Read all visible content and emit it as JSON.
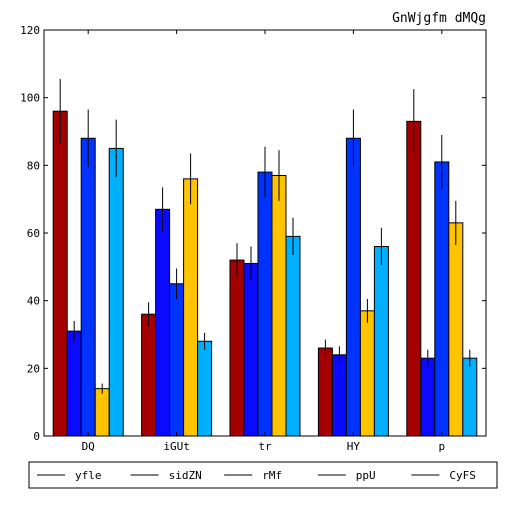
{
  "chart_data": {
    "type": "bar",
    "title": "GnWjgfm dMQg",
    "xlabel": "",
    "ylabel": "",
    "categories": [
      "DQ",
      "iGUt",
      "tr",
      "HY",
      "p"
    ],
    "ylim": [
      0,
      120
    ],
    "yticks": [
      0,
      20,
      40,
      60,
      80,
      100,
      120
    ],
    "grid": false,
    "legend_position": "bottom",
    "series": [
      {
        "name": "yfle",
        "color": "#a50000",
        "values": [
          96,
          36,
          52,
          26,
          93
        ],
        "errors": [
          9.5,
          3.5,
          5,
          2.5,
          9.5
        ]
      },
      {
        "name": "sidZN",
        "color": "#0a0aff",
        "values": [
          31,
          67,
          51,
          24,
          23
        ],
        "errors": [
          3,
          6.5,
          5,
          2.5,
          2.5
        ]
      },
      {
        "name": "rMf",
        "color": "#0033ff",
        "values": [
          88,
          45,
          78,
          88,
          81
        ],
        "errors": [
          8.5,
          4.5,
          7.5,
          8.5,
          8
        ]
      },
      {
        "name": "ppU",
        "color": "#ffc400",
        "values": [
          14,
          76,
          77,
          37,
          63
        ],
        "errors": [
          1.5,
          7.5,
          7.5,
          3.5,
          6.5
        ]
      },
      {
        "name": "CyFS",
        "color": "#00b0ff",
        "values": [
          85,
          28,
          59,
          56,
          23
        ],
        "errors": [
          8.5,
          2.5,
          5.5,
          5.5,
          2.5
        ]
      }
    ]
  }
}
